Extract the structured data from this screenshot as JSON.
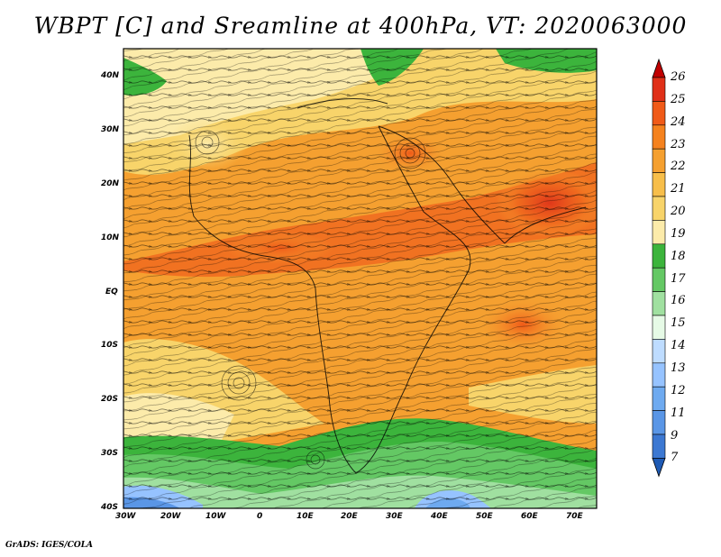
{
  "title": "WBPT [C] and Sreamline at 400hPa, VT: 2020063000",
  "credit": "GrADS: IGES/COLA",
  "axes": {
    "y_ticks": [
      "40N",
      "30N",
      "20N",
      "10N",
      "EQ",
      "10S",
      "20S",
      "30S",
      "40S"
    ],
    "x_ticks": [
      "30W",
      "20W",
      "10W",
      "0",
      "10E",
      "20E",
      "30E",
      "40E",
      "50E",
      "60E",
      "70E"
    ],
    "lat_range": [
      -40,
      44
    ],
    "lon_range": [
      -30,
      75
    ]
  },
  "colorbar": {
    "labels": [
      "26",
      "25",
      "24",
      "23",
      "22",
      "21",
      "20",
      "19",
      "18",
      "17",
      "16",
      "15",
      "14",
      "13",
      "12",
      "11",
      "9",
      "7"
    ],
    "colors": [
      "#c00000",
      "#e03018",
      "#f05a18",
      "#f5821e",
      "#f5a030",
      "#f7be4a",
      "#f8d46a",
      "#fcebaa",
      "#3cb43c",
      "#64c864",
      "#a0e0a0",
      "#e6fae6",
      "#bedcff",
      "#96c3ff",
      "#6eaaf0",
      "#5a96e6",
      "#3c78d2",
      "#1e5ab4"
    ]
  }
}
